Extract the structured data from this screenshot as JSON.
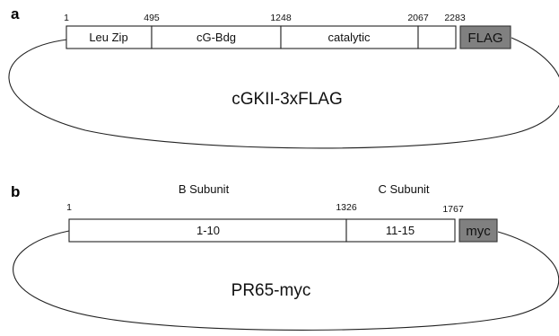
{
  "panel_a": {
    "letter": "a",
    "plasmid_name": "cGKII-3xFLAG",
    "positions": [
      "1",
      "495",
      "1248",
      "2067",
      "2283"
    ],
    "segments": [
      "Leu Zip",
      "cG-Bdg",
      "catalytic",
      ""
    ],
    "tag": "FLAG",
    "colors": {
      "tag_fill": "#808080",
      "segment_fill": "#ffffff"
    }
  },
  "panel_b": {
    "letter": "b",
    "plasmid_name": "PR65-myc",
    "subunit_labels": [
      "B Subunit",
      "C Subunit"
    ],
    "positions": [
      "1",
      "1326",
      "1767"
    ],
    "segments": [
      "1-10",
      "11-15"
    ],
    "tag": "myc",
    "colors": {
      "tag_fill": "#808080",
      "segment_fill": "#ffffff"
    }
  }
}
